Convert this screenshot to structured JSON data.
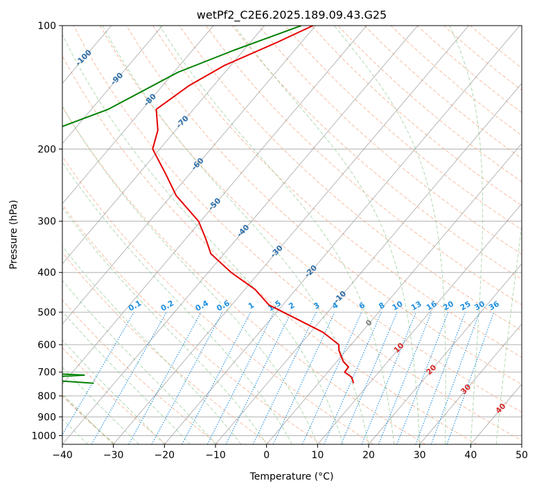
{
  "chart_data": {
    "type": "skew-t",
    "title": "wetPf2_C2E6.2025.189.09.43.G25",
    "xlabel": "Temperature (°C)",
    "ylabel": "Pressure (hPa)",
    "xlim": [
      -40,
      50
    ],
    "ylim": [
      1050,
      100
    ],
    "y_scale": "log",
    "grid": true,
    "x_ticks": [
      -40,
      -30,
      -20,
      -10,
      0,
      10,
      20,
      30,
      40,
      50
    ],
    "x_tick_labels": [
      "−40",
      "−30",
      "−20",
      "−10",
      "0",
      "10",
      "20",
      "30",
      "40",
      "50"
    ],
    "y_ticks": [
      100,
      200,
      300,
      400,
      500,
      600,
      700,
      800,
      900,
      1000
    ],
    "y_tick_labels": [
      "100",
      "200",
      "300",
      "400",
      "500",
      "600",
      "700",
      "800",
      "900",
      "1000"
    ],
    "colors": {
      "temperature": "#e50000",
      "dewpoint": "#008000",
      "isotherm": "#888888",
      "dry_adiabat": "#f4a582",
      "moist_adiabat": "#8fc98f",
      "mixing_ratio": "#1f8fe0",
      "isotherm_label": "#2e6fa8",
      "warm_label": "#d62728",
      "zero_label": "#7f7f7f"
    },
    "isotherm_labels": [
      {
        "text": "-100",
        "T": -100
      },
      {
        "text": "-90",
        "T": -90
      },
      {
        "text": "-80",
        "T": -80
      },
      {
        "text": "-70",
        "T": -70
      },
      {
        "text": "-60",
        "T": -60
      },
      {
        "text": "-50",
        "T": -50
      },
      {
        "text": "-40",
        "T": -40
      },
      {
        "text": "-30",
        "T": -30
      },
      {
        "text": "-20",
        "T": -20
      },
      {
        "text": "-10",
        "T": -10
      },
      {
        "text": "0",
        "T": 0
      },
      {
        "text": "10",
        "T": 10
      },
      {
        "text": "20",
        "T": 20
      },
      {
        "text": "30",
        "T": 30
      },
      {
        "text": "40",
        "T": 40
      }
    ],
    "mixing_ratio_labels": [
      "0.1",
      "0.2",
      "0.4",
      "0.6",
      "1",
      "1.5",
      "2",
      "3",
      "4",
      "6",
      "8",
      "10",
      "13",
      "16",
      "20",
      "25",
      "30",
      "36"
    ],
    "series": [
      {
        "label": "temperature",
        "points": [
          [
            100,
            -60.5
          ],
          [
            110,
            -64.8
          ],
          [
            125,
            -71.2
          ],
          [
            140,
            -74.8
          ],
          [
            160,
            -77.3
          ],
          [
            180,
            -73.5
          ],
          [
            200,
            -71.4
          ],
          [
            230,
            -64.7
          ],
          [
            260,
            -59.0
          ],
          [
            300,
            -50.4
          ],
          [
            330,
            -46.2
          ],
          [
            360,
            -42.6
          ],
          [
            400,
            -35.5
          ],
          [
            440,
            -28.0
          ],
          [
            480,
            -22.7
          ],
          [
            520,
            -14.8
          ],
          [
            560,
            -7.5
          ],
          [
            600,
            -2.4
          ],
          [
            620,
            -1.4
          ],
          [
            660,
            1.3
          ],
          [
            680,
            3.2
          ],
          [
            700,
            3.3
          ],
          [
            720,
            5.5
          ],
          [
            745,
            6.9
          ]
        ]
      },
      {
        "label": "dewpoint",
        "points": [
          [
            100,
            -62.8
          ],
          [
            115,
            -72.0
          ],
          [
            130,
            -79.2
          ],
          [
            160,
            -86.7
          ],
          [
            180,
            -94.2
          ],
          [
            200,
            -91.7
          ],
          [
            230,
            -100.0
          ],
          [
            250,
            -107.3
          ],
          [
            280,
            -115.8
          ],
          [
            300,
            -118.8
          ],
          [
            330,
            -125.5
          ],
          [
            345,
            -140.0
          ],
          [
            370,
            -122.0
          ],
          [
            385,
            -117.0
          ],
          [
            395,
            -140.0
          ],
          [
            420,
            -92.7
          ],
          [
            440,
            -80.5
          ],
          [
            460,
            -81.7
          ],
          [
            480,
            -84.0
          ],
          [
            500,
            -82.6
          ],
          [
            520,
            -83.2
          ],
          [
            540,
            -79.2
          ],
          [
            560,
            -75.3
          ],
          [
            575,
            -80.0
          ],
          [
            590,
            -100.0
          ],
          [
            610,
            -110.0
          ],
          [
            630,
            -89.0
          ],
          [
            650,
            -90.0
          ],
          [
            670,
            -110.0
          ],
          [
            690,
            -90.0
          ],
          [
            700,
            -60.0
          ],
          [
            712,
            -47.2
          ],
          [
            718,
            -52.4
          ],
          [
            724,
            -69.2
          ],
          [
            735,
            -51.5
          ],
          [
            745,
            -44.0
          ]
        ]
      }
    ]
  }
}
